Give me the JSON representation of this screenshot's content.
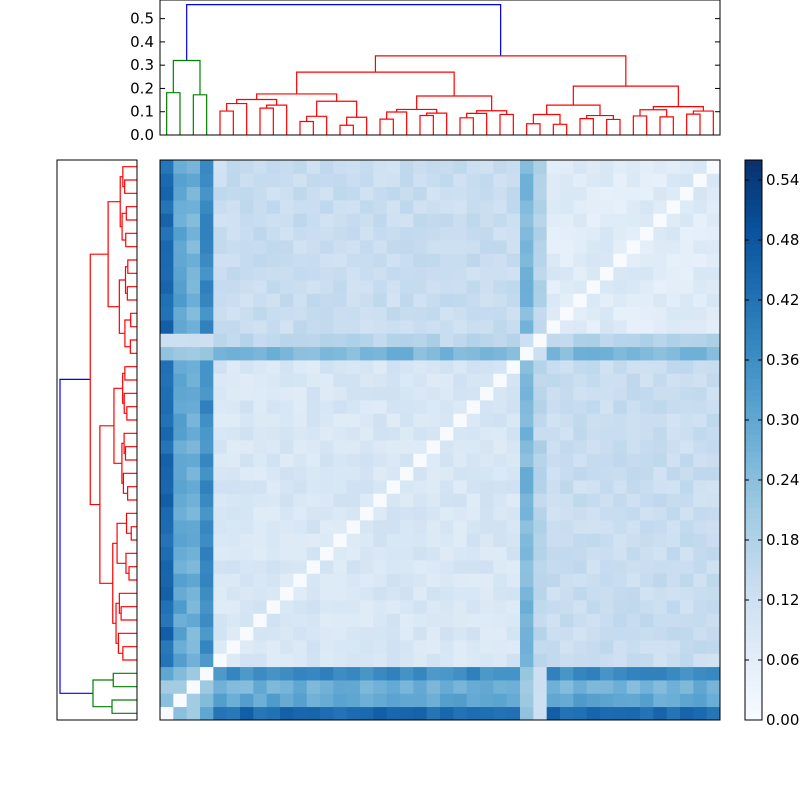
{
  "chart_data": [
    {
      "type": "dendrogram",
      "orientation": "top",
      "leaf_count": 42,
      "ylim": [
        0,
        0.58
      ],
      "yticks": [
        "0.0",
        "0.1",
        "0.2",
        "0.3",
        "0.4",
        "0.5"
      ],
      "ytick_values": [
        0.0,
        0.1,
        0.2,
        0.3,
        0.4,
        0.5
      ],
      "root_height": 0.56,
      "top_merge_heights": [
        0.56,
        0.34,
        0.32,
        0.27,
        0.21,
        0.18
      ],
      "cluster_colors": {
        "root": "#0000ff",
        "cluster_1": "#008000",
        "cluster_2": "#ff0000"
      },
      "grid": false
    },
    {
      "type": "dendrogram",
      "orientation": "left",
      "leaf_count": 42,
      "tick_labels": false,
      "cluster_colors": {
        "root": "#0000ff",
        "cluster_1": "#008000",
        "cluster_2": "#ff0000"
      }
    },
    {
      "type": "heatmap",
      "rows": 42,
      "cols": 42,
      "colormap": "Blues",
      "vmin": 0.0,
      "vmax": 0.56,
      "diagonal_value": 0.0,
      "block_structure": [
        {
          "name": "cluster_1",
          "rows": [
            0,
            3
          ],
          "within": 0.14
        },
        {
          "name": "cluster_2a",
          "rows": [
            4,
            26
          ],
          "within": 0.09
        },
        {
          "name": "cluster_2b",
          "rows": [
            27,
            41
          ],
          "within": 0.07
        }
      ],
      "distinct_rows": [
        {
          "index": 0,
          "mean_distance": 0.43
        },
        {
          "index": 1,
          "mean_distance": 0.3
        },
        {
          "index": 2,
          "mean_distance": 0.27
        },
        {
          "index": 3,
          "mean_distance": 0.36
        },
        {
          "index": 27,
          "mean_distance": 0.26
        },
        {
          "index": 28,
          "mean_distance": 0.16
        }
      ],
      "grid": false
    },
    {
      "type": "colorbar",
      "colormap": "Blues",
      "range": [
        0.0,
        0.56
      ],
      "ticks": [
        "0.54",
        "0.48",
        "0.42",
        "0.36",
        "0.30",
        "0.24",
        "0.18",
        "0.12",
        "0.06",
        "0.00"
      ],
      "tick_values": [
        0.54,
        0.48,
        0.42,
        0.36,
        0.3,
        0.24,
        0.18,
        0.12,
        0.06,
        0.0
      ]
    }
  ]
}
